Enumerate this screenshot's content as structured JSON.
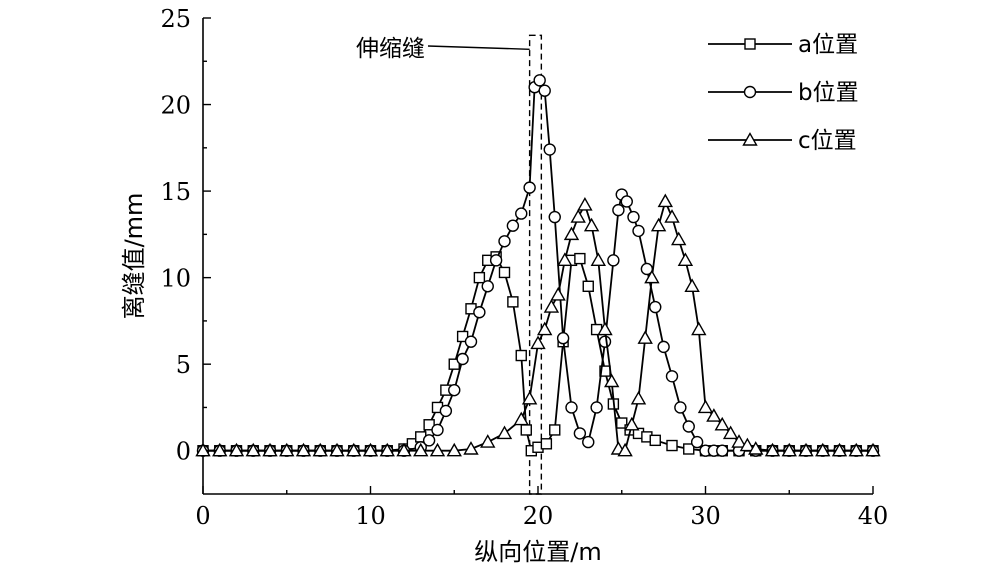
{
  "chart_data": {
    "type": "line",
    "xlabel": "纵向位置/m",
    "ylabel": "离缝值/mm",
    "xlim": [
      0,
      40
    ],
    "ylim": [
      -2.5,
      25
    ],
    "xticks": [
      0,
      10,
      20,
      30,
      40
    ],
    "yticks": [
      0,
      5,
      10,
      15,
      20,
      25
    ],
    "legend_position": "top-right",
    "grid": false,
    "annotation": {
      "text": "伸缩缝",
      "x_from": 19.5,
      "x_to": 20.2,
      "y_top": 24
    },
    "series": [
      {
        "name": "a位置",
        "marker": "square",
        "x": [
          0,
          1,
          2,
          3,
          4,
          5,
          6,
          7,
          8,
          9,
          10,
          11,
          12,
          12.5,
          13,
          13.5,
          14,
          14.5,
          15,
          15.5,
          16,
          16.5,
          17,
          17.5,
          18,
          18.5,
          19,
          19.3,
          19.6,
          20,
          20.5,
          21,
          21.5,
          22,
          22.5,
          23,
          23.5,
          24,
          24.5,
          25,
          25.5,
          26,
          26.5,
          27,
          28,
          29,
          30,
          31,
          32,
          33,
          34,
          35,
          36,
          37,
          38,
          39,
          40
        ],
        "y": [
          0,
          0,
          0,
          0,
          0,
          0,
          0,
          0,
          0,
          0,
          0,
          0,
          0.1,
          0.4,
          0.8,
          1.5,
          2.5,
          3.5,
          5,
          6.6,
          8.2,
          10,
          11,
          11.2,
          10.3,
          8.6,
          5.5,
          1.2,
          0,
          0.2,
          0.4,
          1.2,
          6.3,
          11,
          11.1,
          9.5,
          7,
          4.6,
          2.7,
          1.6,
          1.2,
          1,
          0.8,
          0.6,
          0.3,
          0.1,
          0,
          0,
          0,
          0,
          0,
          0,
          0,
          0,
          0,
          0,
          0
        ]
      },
      {
        "name": "b位置",
        "marker": "circle",
        "x": [
          0,
          1,
          2,
          3,
          4,
          5,
          6,
          7,
          8,
          9,
          10,
          11,
          12,
          13,
          13.5,
          14,
          14.5,
          15,
          15.5,
          16,
          16.5,
          17,
          17.5,
          18,
          18.5,
          19,
          19.5,
          19.8,
          20.1,
          20.4,
          20.7,
          21,
          21.5,
          22,
          22.5,
          23,
          23.5,
          24,
          24.5,
          24.8,
          25,
          25.3,
          25.7,
          26,
          26.5,
          27,
          27.5,
          28,
          28.5,
          29,
          29.5,
          30,
          30.5,
          31,
          32,
          33,
          34,
          35,
          36,
          37,
          38,
          39,
          40
        ],
        "y": [
          0,
          0,
          0,
          0,
          0,
          0,
          0,
          0,
          0,
          0,
          0,
          0,
          0,
          0.2,
          0.6,
          1.2,
          2.3,
          3.5,
          5.3,
          6.3,
          8,
          9.5,
          11,
          12.1,
          13,
          13.7,
          15.2,
          21,
          21.4,
          20.8,
          17.4,
          13.5,
          6.5,
          2.5,
          1,
          0.5,
          2.5,
          6.3,
          11,
          13.9,
          14.8,
          14.4,
          13.5,
          12.7,
          10.5,
          8.3,
          6,
          4.3,
          2.5,
          1.4,
          0.5,
          0,
          0,
          0,
          0,
          0,
          0,
          0,
          0,
          0,
          0,
          0,
          0
        ]
      },
      {
        "name": "c位置",
        "marker": "triangle",
        "x": [
          0,
          1,
          2,
          3,
          4,
          5,
          6,
          7,
          8,
          9,
          10,
          11,
          12,
          13,
          14,
          15,
          16,
          17,
          18,
          19,
          19.5,
          20,
          20.4,
          20.8,
          21.2,
          21.6,
          22,
          22.4,
          22.8,
          23.2,
          23.6,
          24,
          24.4,
          24.8,
          25.2,
          25.6,
          26,
          26.4,
          26.8,
          27.2,
          27.6,
          28,
          28.4,
          28.8,
          29.2,
          29.6,
          30,
          30.5,
          31,
          31.5,
          32,
          32.5,
          33,
          34,
          35,
          36,
          37,
          38,
          39,
          40
        ],
        "y": [
          0,
          0,
          0,
          0,
          0,
          0,
          0,
          0,
          0,
          0,
          0,
          0,
          0,
          0,
          0,
          0,
          0.1,
          0.5,
          1,
          1.8,
          3,
          6.2,
          7,
          8.3,
          9,
          11,
          12.5,
          13.5,
          14.2,
          13,
          11,
          7,
          4,
          0.1,
          0,
          1.5,
          3,
          6.5,
          10,
          13,
          14.4,
          13.5,
          12.2,
          11,
          9.5,
          7,
          2.5,
          2,
          1.5,
          1,
          0.5,
          0.3,
          0.1,
          0,
          0,
          0,
          0,
          0,
          0,
          0
        ]
      }
    ]
  }
}
